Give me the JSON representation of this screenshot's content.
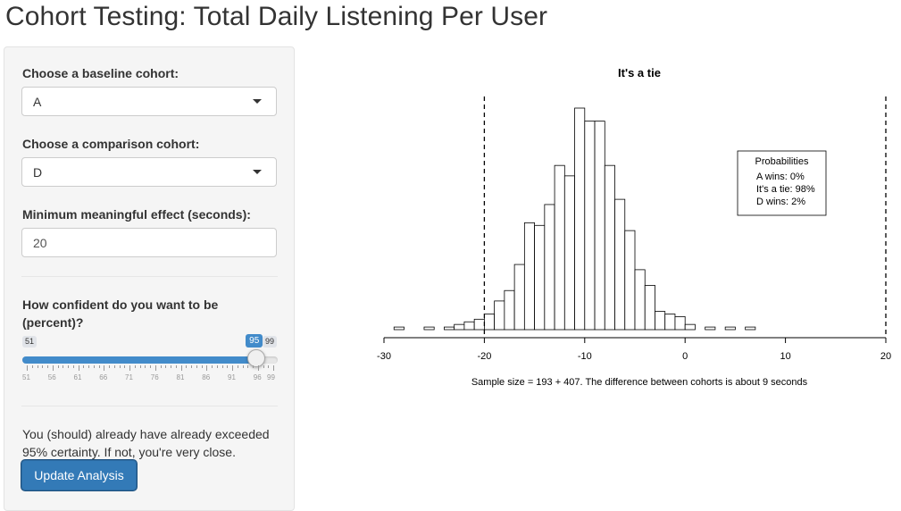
{
  "app": {
    "title": "Cohort Testing: Total Daily Listening Per User"
  },
  "sidebar": {
    "baseline": {
      "label": "Choose a baseline cohort:",
      "value": "A"
    },
    "comparison": {
      "label": "Choose a comparison cohort:",
      "value": "D"
    },
    "min_effect": {
      "label": "Minimum meaningful effect (seconds):",
      "value": "20"
    },
    "confidence": {
      "label": "How confident do you want to be (percent)?",
      "min": 51,
      "max": 99,
      "value": 95,
      "min_label": "51",
      "max_label": "99",
      "value_label": "95",
      "grid_labels": [
        "51",
        "56",
        "61",
        "66",
        "71",
        "76",
        "81",
        "86",
        "91",
        "96",
        "99"
      ]
    },
    "message": "You (should) already have already exceeded 95% certainty. If not, you're very close.",
    "update_button": "Update Analysis"
  },
  "chart_data": {
    "type": "bar",
    "title": "It's a tie",
    "xlabel": "Sample size = 193 + 407.  The difference between cohorts is about 9 seconds",
    "ylabel": "",
    "xlim": [
      -30,
      20
    ],
    "xticks": [
      -30,
      -20,
      -10,
      0,
      10,
      20
    ],
    "xtick_labels": [
      "-30",
      "-20",
      "-10",
      "0",
      "10",
      "20"
    ],
    "bin_width": 1,
    "bins_start": -29,
    "counts": [
      1,
      0,
      0,
      1,
      0,
      1,
      2,
      3,
      4,
      6,
      11,
      15,
      25,
      41,
      40,
      48,
      63,
      59,
      85,
      80,
      80,
      63,
      50,
      38,
      23,
      17,
      7,
      6,
      5,
      2,
      0,
      1,
      0,
      1,
      0,
      1
    ],
    "vlines": [
      -20,
      20
    ],
    "legend": {
      "title": "Probabilities",
      "entries": [
        "A wins: 0%",
        "It's a tie: 98%",
        "D wins: 2%"
      ],
      "position": "top-right"
    }
  }
}
